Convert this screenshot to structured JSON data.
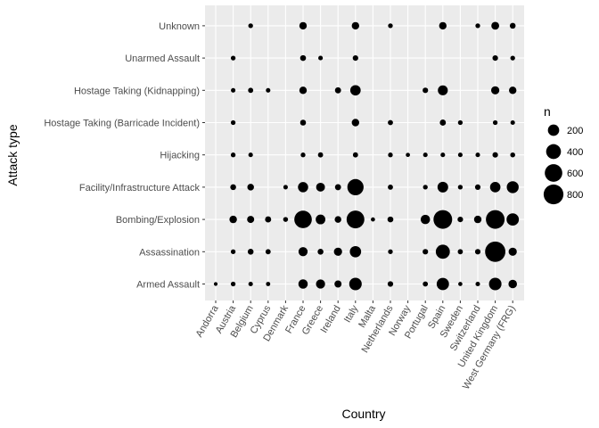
{
  "chart_data": {
    "type": "scatter",
    "xlabel": "Country",
    "ylabel": "Attack type",
    "x_categories": [
      "Andorra",
      "Austria",
      "Belgium",
      "Cyprus",
      "Denmark",
      "France",
      "Greece",
      "Ireland",
      "Italy",
      "Malta",
      "Netherlands",
      "Norway",
      "Portugal",
      "Spain",
      "Sweden",
      "Switzerland",
      "United Kingdom",
      "West Germany (FRG)"
    ],
    "y_categories": [
      "Armed Assault",
      "Assassination",
      "Bombing/Explosion",
      "Facility/Infrastructure Attack",
      "Hijacking",
      "Hostage Taking (Barricade Incident)",
      "Hostage Taking (Kidnapping)",
      "Unarmed Assault",
      "Unknown"
    ],
    "size_variable": "n",
    "legend": {
      "title": "n",
      "breaks": [
        200,
        400,
        600,
        800
      ],
      "position": "right"
    },
    "grid": true,
    "colors": {
      "panel": "#ebebeb",
      "grid": "#ffffff",
      "point": "#000000"
    },
    "points": [
      {
        "x": "Andorra",
        "y": "Armed Assault",
        "n": 2
      },
      {
        "x": "Austria",
        "y": "Armed Assault",
        "n": 10
      },
      {
        "x": "Belgium",
        "y": "Armed Assault",
        "n": 8
      },
      {
        "x": "Cyprus",
        "y": "Armed Assault",
        "n": 6
      },
      {
        "x": "France",
        "y": "Armed Assault",
        "n": 120
      },
      {
        "x": "Greece",
        "y": "Armed Assault",
        "n": 110
      },
      {
        "x": "Ireland",
        "y": "Armed Assault",
        "n": 50
      },
      {
        "x": "Italy",
        "y": "Armed Assault",
        "n": 260
      },
      {
        "x": "Netherlands",
        "y": "Armed Assault",
        "n": 20
      },
      {
        "x": "Portugal",
        "y": "Armed Assault",
        "n": 15
      },
      {
        "x": "Spain",
        "y": "Armed Assault",
        "n": 250
      },
      {
        "x": "Sweden",
        "y": "Armed Assault",
        "n": 5
      },
      {
        "x": "Switzerland",
        "y": "Armed Assault",
        "n": 8
      },
      {
        "x": "United Kingdom",
        "y": "Armed Assault",
        "n": 260
      },
      {
        "x": "West Germany (FRG)",
        "y": "Armed Assault",
        "n": 90
      },
      {
        "x": "Austria",
        "y": "Assassination",
        "n": 10
      },
      {
        "x": "Belgium",
        "y": "Assassination",
        "n": 25
      },
      {
        "x": "Cyprus",
        "y": "Assassination",
        "n": 15
      },
      {
        "x": "France",
        "y": "Assassination",
        "n": 110
      },
      {
        "x": "Greece",
        "y": "Assassination",
        "n": 25
      },
      {
        "x": "Ireland",
        "y": "Assassination",
        "n": 80
      },
      {
        "x": "Italy",
        "y": "Assassination",
        "n": 200
      },
      {
        "x": "Netherlands",
        "y": "Assassination",
        "n": 10
      },
      {
        "x": "Portugal",
        "y": "Assassination",
        "n": 20
      },
      {
        "x": "Spain",
        "y": "Assassination",
        "n": 350
      },
      {
        "x": "Sweden",
        "y": "Assassination",
        "n": 15
      },
      {
        "x": "Switzerland",
        "y": "Assassination",
        "n": 20
      },
      {
        "x": "United Kingdom",
        "y": "Assassination",
        "n": 850
      },
      {
        "x": "West Germany (FRG)",
        "y": "Assassination",
        "n": 80
      },
      {
        "x": "Austria",
        "y": "Bombing/Explosion",
        "n": 60
      },
      {
        "x": "Belgium",
        "y": "Bombing/Explosion",
        "n": 50
      },
      {
        "x": "Cyprus",
        "y": "Bombing/Explosion",
        "n": 30
      },
      {
        "x": "Denmark",
        "y": "Bombing/Explosion",
        "n": 12
      },
      {
        "x": "France",
        "y": "Bombing/Explosion",
        "n": 600
      },
      {
        "x": "Greece",
        "y": "Bombing/Explosion",
        "n": 130
      },
      {
        "x": "Ireland",
        "y": "Bombing/Explosion",
        "n": 40
      },
      {
        "x": "Italy",
        "y": "Bombing/Explosion",
        "n": 620
      },
      {
        "x": "Malta",
        "y": "Bombing/Explosion",
        "n": 5
      },
      {
        "x": "Netherlands",
        "y": "Bombing/Explosion",
        "n": 25
      },
      {
        "x": "Portugal",
        "y": "Bombing/Explosion",
        "n": 120
      },
      {
        "x": "Spain",
        "y": "Bombing/Explosion",
        "n": 700
      },
      {
        "x": "Sweden",
        "y": "Bombing/Explosion",
        "n": 20
      },
      {
        "x": "Switzerland",
        "y": "Bombing/Explosion",
        "n": 60
      },
      {
        "x": "United Kingdom",
        "y": "Bombing/Explosion",
        "n": 700
      },
      {
        "x": "West Germany (FRG)",
        "y": "Bombing/Explosion",
        "n": 250
      },
      {
        "x": "Austria",
        "y": "Facility/Infrastructure Attack",
        "n": 25
      },
      {
        "x": "Belgium",
        "y": "Facility/Infrastructure Attack",
        "n": 40
      },
      {
        "x": "Denmark",
        "y": "Facility/Infrastructure Attack",
        "n": 8
      },
      {
        "x": "France",
        "y": "Facility/Infrastructure Attack",
        "n": 150
      },
      {
        "x": "Greece",
        "y": "Facility/Infrastructure Attack",
        "n": 100
      },
      {
        "x": "Ireland",
        "y": "Facility/Infrastructure Attack",
        "n": 30
      },
      {
        "x": "Italy",
        "y": "Facility/Infrastructure Attack",
        "n": 500
      },
      {
        "x": "Netherlands",
        "y": "Facility/Infrastructure Attack",
        "n": 15
      },
      {
        "x": "Portugal",
        "y": "Facility/Infrastructure Attack",
        "n": 10
      },
      {
        "x": "Spain",
        "y": "Facility/Infrastructure Attack",
        "n": 170
      },
      {
        "x": "Sweden",
        "y": "Facility/Infrastructure Attack",
        "n": 10
      },
      {
        "x": "Switzerland",
        "y": "Facility/Infrastructure Attack",
        "n": 20
      },
      {
        "x": "United Kingdom",
        "y": "Facility/Infrastructure Attack",
        "n": 160
      },
      {
        "x": "West Germany (FRG)",
        "y": "Facility/Infrastructure Attack",
        "n": 230
      },
      {
        "x": "Austria",
        "y": "Hijacking",
        "n": 10
      },
      {
        "x": "Belgium",
        "y": "Hijacking",
        "n": 8
      },
      {
        "x": "France",
        "y": "Hijacking",
        "n": 10
      },
      {
        "x": "Greece",
        "y": "Hijacking",
        "n": 15
      },
      {
        "x": "Italy",
        "y": "Hijacking",
        "n": 15
      },
      {
        "x": "Netherlands",
        "y": "Hijacking",
        "n": 10
      },
      {
        "x": "Norway",
        "y": "Hijacking",
        "n": 5
      },
      {
        "x": "Portugal",
        "y": "Hijacking",
        "n": 8
      },
      {
        "x": "Spain",
        "y": "Hijacking",
        "n": 8
      },
      {
        "x": "Sweden",
        "y": "Hijacking",
        "n": 8
      },
      {
        "x": "Switzerland",
        "y": "Hijacking",
        "n": 8
      },
      {
        "x": "United Kingdom",
        "y": "Hijacking",
        "n": 20
      },
      {
        "x": "West Germany (FRG)",
        "y": "Hijacking",
        "n": 12
      },
      {
        "x": "Austria",
        "y": "Hostage Taking (Barricade Incident)",
        "n": 10
      },
      {
        "x": "France",
        "y": "Hostage Taking (Barricade Incident)",
        "n": 25
      },
      {
        "x": "Italy",
        "y": "Hostage Taking (Barricade Incident)",
        "n": 60
      },
      {
        "x": "Netherlands",
        "y": "Hostage Taking (Barricade Incident)",
        "n": 15
      },
      {
        "x": "Spain",
        "y": "Hostage Taking (Barricade Incident)",
        "n": 30
      },
      {
        "x": "Sweden",
        "y": "Hostage Taking (Barricade Incident)",
        "n": 10
      },
      {
        "x": "United Kingdom",
        "y": "Hostage Taking (Barricade Incident)",
        "n": 10
      },
      {
        "x": "West Germany (FRG)",
        "y": "Hostage Taking (Barricade Incident)",
        "n": 8
      },
      {
        "x": "Austria",
        "y": "Hostage Taking (Kidnapping)",
        "n": 8
      },
      {
        "x": "Belgium",
        "y": "Hostage Taking (Kidnapping)",
        "n": 15
      },
      {
        "x": "Cyprus",
        "y": "Hostage Taking (Kidnapping)",
        "n": 8
      },
      {
        "x": "France",
        "y": "Hostage Taking (Kidnapping)",
        "n": 60
      },
      {
        "x": "Ireland",
        "y": "Hostage Taking (Kidnapping)",
        "n": 30
      },
      {
        "x": "Italy",
        "y": "Hostage Taking (Kidnapping)",
        "n": 160
      },
      {
        "x": "Portugal",
        "y": "Hostage Taking (Kidnapping)",
        "n": 20
      },
      {
        "x": "Spain",
        "y": "Hostage Taking (Kidnapping)",
        "n": 140
      },
      {
        "x": "United Kingdom",
        "y": "Hostage Taking (Kidnapping)",
        "n": 80
      },
      {
        "x": "West Germany (FRG)",
        "y": "Hostage Taking (Kidnapping)",
        "n": 60
      },
      {
        "x": "Austria",
        "y": "Unarmed Assault",
        "n": 10
      },
      {
        "x": "France",
        "y": "Unarmed Assault",
        "n": 25
      },
      {
        "x": "Greece",
        "y": "Unarmed Assault",
        "n": 8
      },
      {
        "x": "Italy",
        "y": "Unarmed Assault",
        "n": 20
      },
      {
        "x": "United Kingdom",
        "y": "Unarmed Assault",
        "n": 20
      },
      {
        "x": "West Germany (FRG)",
        "y": "Unarmed Assault",
        "n": 10
      },
      {
        "x": "Belgium",
        "y": "Unknown",
        "n": 10
      },
      {
        "x": "France",
        "y": "Unknown",
        "n": 60
      },
      {
        "x": "Italy",
        "y": "Unknown",
        "n": 60
      },
      {
        "x": "Netherlands",
        "y": "Unknown",
        "n": 10
      },
      {
        "x": "Spain",
        "y": "Unknown",
        "n": 60
      },
      {
        "x": "Switzerland",
        "y": "Unknown",
        "n": 10
      },
      {
        "x": "United Kingdom",
        "y": "Unknown",
        "n": 70
      },
      {
        "x": "West Germany (FRG)",
        "y": "Unknown",
        "n": 25
      }
    ]
  }
}
